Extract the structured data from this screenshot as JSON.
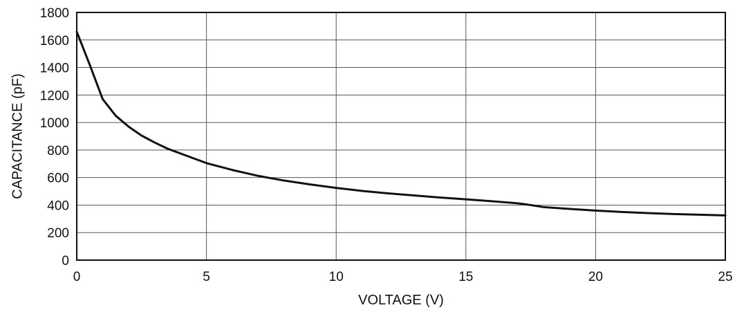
{
  "chart_data": {
    "type": "line",
    "title": "",
    "xlabel": "VOLTAGE (V)",
    "ylabel": "CAPACITANCE (pF)",
    "xlim": [
      0,
      25
    ],
    "ylim": [
      0,
      1800
    ],
    "x_ticks": [
      "0",
      "5",
      "10",
      "15",
      "20",
      "25"
    ],
    "y_ticks": [
      "0",
      "200",
      "400",
      "600",
      "800",
      "1000",
      "1200",
      "1400",
      "1600",
      "1800"
    ],
    "grid": true,
    "legend": "none",
    "series": [
      {
        "color": "#111111",
        "x": [
          0,
          0.5,
          1,
          1.5,
          2,
          2.5,
          3,
          3.5,
          4,
          5,
          6,
          7,
          8,
          9,
          10,
          11,
          12,
          13,
          14,
          15,
          16,
          17,
          17.5,
          18,
          19,
          20,
          21,
          22,
          23,
          24,
          25
        ],
        "y": [
          1660,
          1420,
          1170,
          1050,
          970,
          905,
          855,
          810,
          775,
          705,
          655,
          612,
          578,
          550,
          525,
          503,
          485,
          470,
          455,
          442,
          428,
          413,
          400,
          385,
          372,
          360,
          350,
          342,
          335,
          330,
          325
        ]
      }
    ]
  }
}
